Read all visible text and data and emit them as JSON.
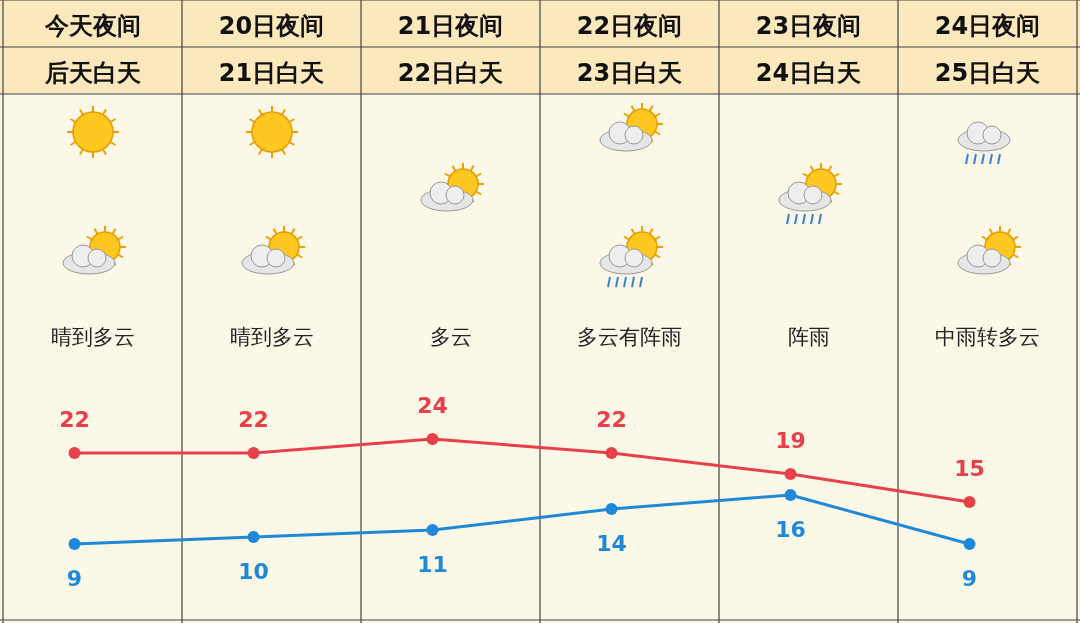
{
  "chart_data": {
    "type": "line",
    "categories": [
      "今天夜间后天白天",
      "20日夜间21日白天",
      "21日夜间22日白天",
      "22日夜间23日白天",
      "23日夜间24日白天",
      "24日夜间25日白天"
    ],
    "series": [
      {
        "color": "#e8404a",
        "values": [
          22,
          22,
          24,
          22,
          19,
          15
        ]
      },
      {
        "color": "#1f88d8",
        "values": [
          9,
          10,
          11,
          14,
          16,
          9
        ]
      }
    ],
    "data_labels": true,
    "marker": "circle",
    "line_style": "solid",
    "annotations": [
      "晴到多云",
      "晴到多云",
      "多云",
      "多云有阵雨",
      "阵雨",
      "中雨转多云"
    ]
  }
}
